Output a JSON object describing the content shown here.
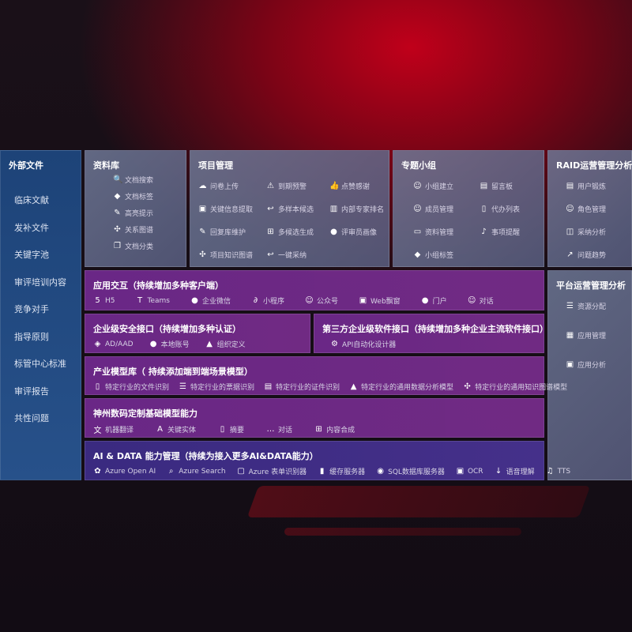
{
  "external": {
    "title": "外部文件",
    "items": [
      "临床文献",
      "发补文件",
      "关键字池",
      "审评培训内容",
      "竞争对手",
      "指导原则",
      "标管中心标准",
      "审评报告",
      "共性问题"
    ]
  },
  "library": {
    "title": "资料库",
    "items": [
      {
        "icon": "doc-search-icon",
        "label": "文档搜索"
      },
      {
        "icon": "tag-icon",
        "label": "文档标签"
      },
      {
        "icon": "pen-icon",
        "label": "高亮提示"
      },
      {
        "icon": "graph-icon",
        "label": "关系图谱"
      },
      {
        "icon": "doc-stack-icon",
        "label": "文档分类"
      }
    ]
  },
  "project": {
    "title": "项目管理",
    "items": [
      {
        "icon": "upload-cloud-icon",
        "label": "问卷上传"
      },
      {
        "icon": "alarm-icon",
        "label": "到期预警"
      },
      {
        "icon": "thumbs-up-icon",
        "label": "点赞感谢"
      },
      {
        "icon": "window-icon",
        "label": "关键信息提取"
      },
      {
        "icon": "reply-icon",
        "label": "多样本候选"
      },
      {
        "icon": "ranking-icon",
        "label": "内部专家排名"
      },
      {
        "icon": "edit-icon",
        "label": "回复库维护"
      },
      {
        "icon": "puzzle-icon",
        "label": "多候选生成"
      },
      {
        "icon": "user-icon",
        "label": "评审员画像"
      },
      {
        "icon": "graph-icon",
        "label": "项目知识图谱"
      },
      {
        "icon": "reply-icon",
        "label": "一键采纳"
      }
    ]
  },
  "group": {
    "title": "专题小组",
    "items": [
      {
        "icon": "users-icon",
        "label": "小组建立"
      },
      {
        "icon": "bbs-icon",
        "label": "留言板"
      },
      {
        "icon": "user-add-icon",
        "label": "成员管理"
      },
      {
        "icon": "clipboard-icon",
        "label": "代办列表"
      },
      {
        "icon": "folder-icon",
        "label": "资料管理"
      },
      {
        "icon": "bell-icon",
        "label": "事项提醒"
      },
      {
        "icon": "tag-icon",
        "label": "小组标签"
      }
    ]
  },
  "raid": {
    "title": "RAID运营管理分析",
    "items": [
      {
        "icon": "id-card-icon",
        "label": "用户锻炼"
      },
      {
        "icon": "users-icon",
        "label": "角色管理"
      },
      {
        "icon": "qa-icon",
        "label": "采纳分析"
      },
      {
        "icon": "trend-icon",
        "label": "问题趋势"
      }
    ]
  },
  "platform": {
    "title": "平台运营管理分析",
    "items": [
      {
        "icon": "checklist-icon",
        "label": "资源分配"
      },
      {
        "icon": "apps-icon",
        "label": "应用管理"
      },
      {
        "icon": "analysis-icon",
        "label": "应用分析"
      }
    ]
  },
  "interaction": {
    "title": "应用交互（持续增加多种客户端）",
    "items": [
      {
        "icon": "html5-icon",
        "label": "H5"
      },
      {
        "icon": "teams-icon",
        "label": "Teams"
      },
      {
        "icon": "wechat-work-icon",
        "label": "企业微信"
      },
      {
        "icon": "mini-program-icon",
        "label": "小程序"
      },
      {
        "icon": "users-icon",
        "label": "公众号"
      },
      {
        "icon": "window-icon",
        "label": "Web飘窗"
      },
      {
        "icon": "portal-icon",
        "label": "门户"
      },
      {
        "icon": "chat-users-icon",
        "label": "对话"
      }
    ]
  },
  "security": {
    "title": "企业级安全接口（持续增加多种认证）",
    "items": [
      {
        "icon": "ad-icon",
        "label": "AD/AAD"
      },
      {
        "icon": "user-lock-icon",
        "label": "本地账号"
      },
      {
        "icon": "org-icon",
        "label": "组织定义"
      }
    ]
  },
  "thirdparty": {
    "title": "第三方企业级软件接口（持续增加多种企业主流软件接口）",
    "items": [
      {
        "icon": "gear-icon",
        "label": "API自动化设计器"
      }
    ]
  },
  "industry": {
    "title": "产业模型库（ 持续添加端到端场景模型）",
    "items": [
      {
        "icon": "file-icon",
        "label": "特定行业的文件识别"
      },
      {
        "icon": "receipt-icon",
        "label": "特定行业的票据识别"
      },
      {
        "icon": "id-card-icon",
        "label": "特定行业的证件识别"
      },
      {
        "icon": "chart-icon",
        "label": "特定行业的通用数据分析模型"
      },
      {
        "icon": "graph-icon",
        "label": "特定行业的通用知识图谱模型"
      }
    ]
  },
  "base": {
    "title": "神州数码定制基础模型能力",
    "items": [
      {
        "icon": "translate-icon",
        "label": "机器翻译"
      },
      {
        "icon": "entity-icon",
        "label": "关键实体"
      },
      {
        "icon": "summary-icon",
        "label": "摘要"
      },
      {
        "icon": "chat-icon",
        "label": "对话"
      },
      {
        "icon": "puzzle-icon",
        "label": "内容合成"
      }
    ]
  },
  "ai": {
    "title": "AI & DATA 能力管理（持续为接入更多AI&DATA能力）",
    "items": [
      {
        "icon": "openai-icon",
        "label": "Azure Open AI"
      },
      {
        "icon": "search-doc-icon",
        "label": "Azure Search"
      },
      {
        "icon": "form-icon",
        "label": "Azure 表单识别器"
      },
      {
        "icon": "cache-icon",
        "label": "缓存服务器"
      },
      {
        "icon": "database-icon",
        "label": "SQL数据库服务器"
      },
      {
        "icon": "ocr-icon",
        "label": "OCR"
      },
      {
        "icon": "voice-icon",
        "label": "语音理解"
      },
      {
        "icon": "tts-icon",
        "label": "TTS"
      }
    ]
  }
}
